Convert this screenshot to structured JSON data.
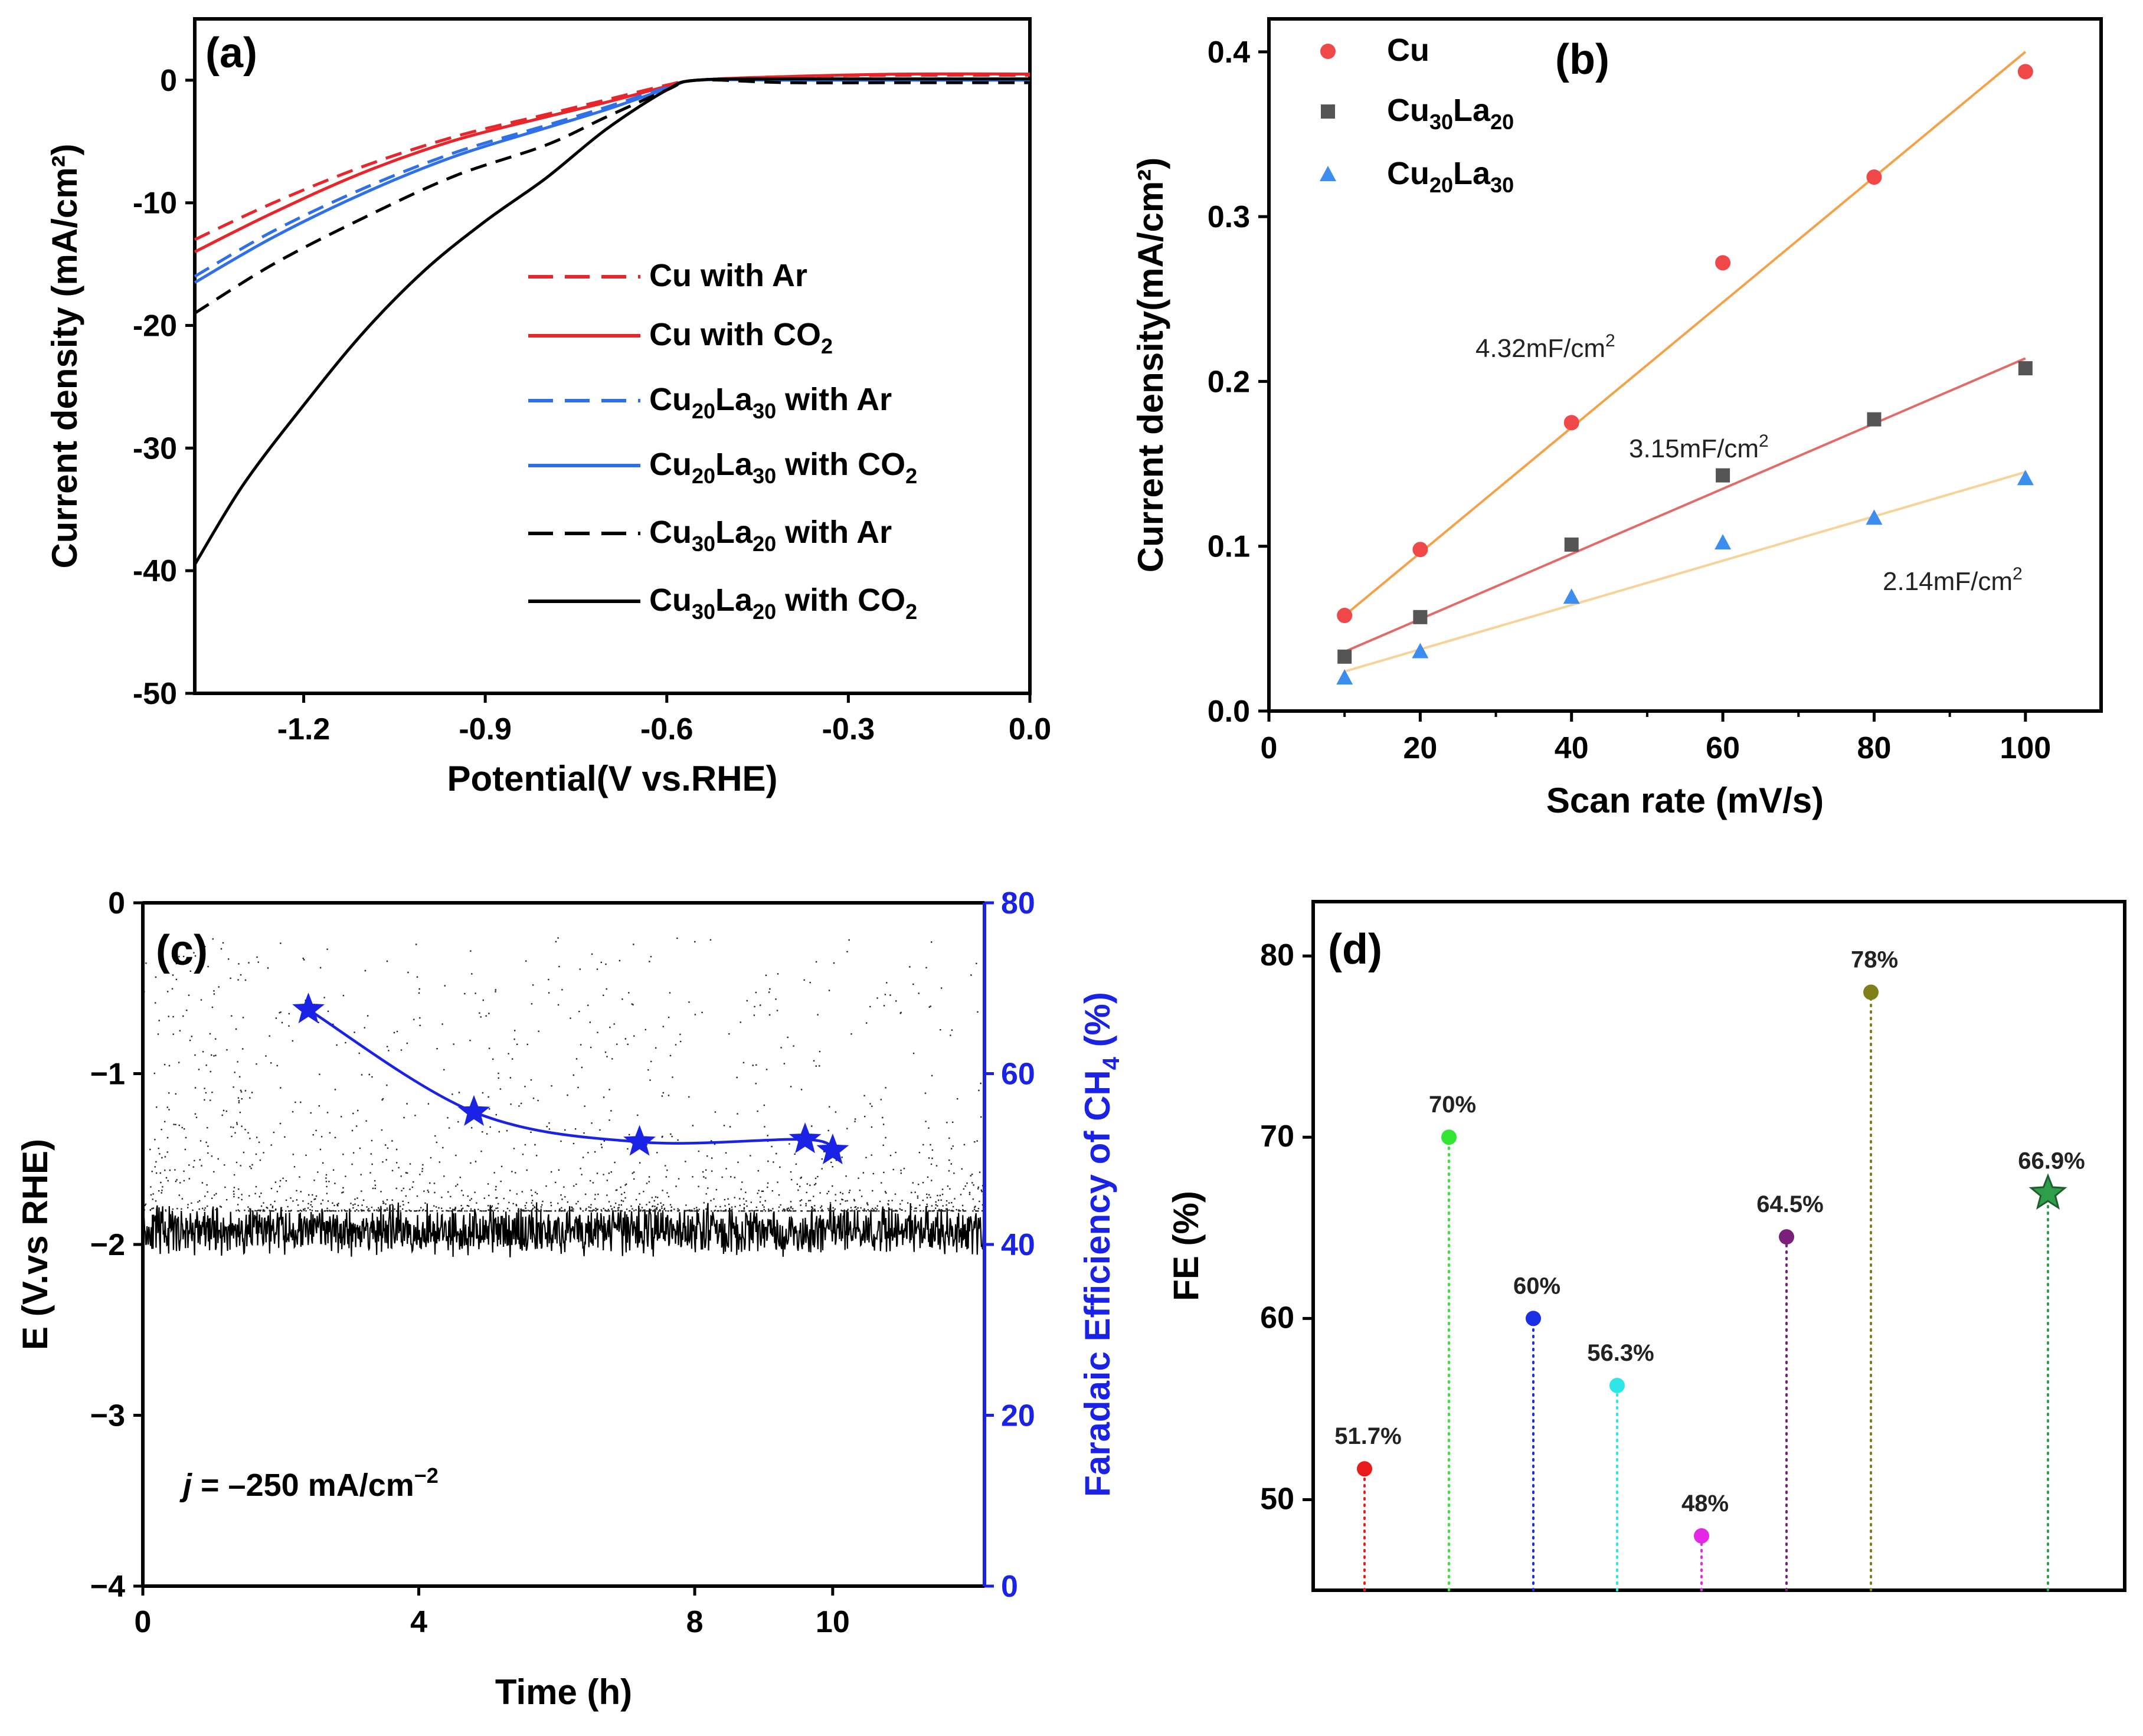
{
  "colors": {
    "red": "#e8252a",
    "blue": "#2f6fe8",
    "black": "#000000",
    "cu": "#f04848",
    "cu30la20": "#555555",
    "cu20la30": "#3b8df0",
    "fitCu": "#f4a24a",
    "fitCu30": "#e06c68",
    "fitCu20": "#f7d39a",
    "faradaic": "#1a22e6"
  },
  "chart_data": [
    {
      "panel": "(a)",
      "type": "line",
      "xlabel": "Potential(V vs.RHE)",
      "ylabel": "Current density (mA/cm²)",
      "xlim": [
        -1.38,
        0.0
      ],
      "ylim": [
        -50,
        5
      ],
      "xticks": [
        {
          "v": -1.2,
          "label": "-1.2"
        },
        {
          "v": -0.9,
          "label": "-0.9"
        },
        {
          "v": -0.6,
          "label": "-0.6"
        },
        {
          "v": -0.3,
          "label": "-0.3"
        },
        {
          "v": 0.0,
          "label": "0.0"
        }
      ],
      "yticks": [
        {
          "v": 0,
          "label": "0"
        },
        {
          "v": -10,
          "label": "-10"
        },
        {
          "v": -20,
          "label": "-20"
        },
        {
          "v": -30,
          "label": "-30"
        },
        {
          "v": -40,
          "label": "-40"
        },
        {
          "v": -50,
          "label": "-50"
        }
      ],
      "legend_position": "center-right",
      "series": [
        {
          "name": "Cu with Ar",
          "legend_main": "Cu with Ar",
          "legend_sub": "",
          "legend_tail": "",
          "color": "#e8252a",
          "dash": true,
          "x": [
            -1.38,
            -1.25,
            -1.1,
            -0.95,
            -0.8,
            -0.7,
            -0.6,
            -0.55,
            -0.4,
            -0.2,
            0.0
          ],
          "y": [
            -13.0,
            -10.0,
            -7.0,
            -4.6,
            -2.8,
            -1.6,
            -0.4,
            0.0,
            0.3,
            0.4,
            0.4
          ]
        },
        {
          "name": "Cu with CO₂",
          "legend_main": "Cu with CO",
          "legend_sub": "2",
          "legend_tail": "",
          "color": "#e8252a",
          "dash": false,
          "x": [
            -1.38,
            -1.25,
            -1.1,
            -0.95,
            -0.8,
            -0.7,
            -0.6,
            -0.55,
            -0.4,
            -0.2,
            0.0
          ],
          "y": [
            -14.0,
            -10.8,
            -7.5,
            -4.9,
            -3.0,
            -1.8,
            -0.5,
            0.0,
            0.3,
            0.5,
            0.5
          ]
        },
        {
          "name": "Cu₂₀La₃₀ with Ar",
          "legend_main": "Cu",
          "legend_sub": "20",
          "legend_main2": "La",
          "legend_sub2": "30",
          "legend_tail": " with Ar",
          "color": "#2f6fe8",
          "dash": true,
          "x": [
            -1.38,
            -1.25,
            -1.1,
            -0.95,
            -0.8,
            -0.7,
            -0.6,
            -0.55,
            -0.4,
            -0.2,
            0.0
          ],
          "y": [
            -16.0,
            -12.3,
            -8.8,
            -5.9,
            -3.7,
            -2.2,
            -0.6,
            0.0,
            0.1,
            0.1,
            0.1
          ]
        },
        {
          "name": "Cu₂₀La₃₀ with CO₂",
          "legend_main": "Cu",
          "legend_sub": "20",
          "legend_main2": "La",
          "legend_sub2": "30",
          "legend_tail": " with CO",
          "legend_sub3": "2",
          "color": "#2f6fe8",
          "dash": false,
          "x": [
            -1.38,
            -1.25,
            -1.1,
            -0.95,
            -0.8,
            -0.7,
            -0.6,
            -0.55,
            -0.4,
            -0.2,
            0.0
          ],
          "y": [
            -16.5,
            -12.8,
            -9.2,
            -6.2,
            -3.9,
            -2.4,
            -0.7,
            0.0,
            0.0,
            0.0,
            0.0
          ]
        },
        {
          "name": "Cu₃₀La₂₀ with Ar",
          "legend_main": "Cu",
          "legend_sub": "30",
          "legend_main2": "La",
          "legend_sub2": "20",
          "legend_tail": " with Ar",
          "color": "#000000",
          "dash": true,
          "x": [
            -1.38,
            -1.25,
            -1.1,
            -0.95,
            -0.8,
            -0.7,
            -0.6,
            -0.55,
            -0.4,
            -0.2,
            0.0
          ],
          "y": [
            -19.0,
            -15.0,
            -11.2,
            -7.8,
            -5.3,
            -3.0,
            -0.8,
            0.0,
            -0.2,
            -0.2,
            -0.2
          ]
        },
        {
          "name": "Cu₃₀La₂₀ with CO₂",
          "legend_main": "Cu",
          "legend_sub": "30",
          "legend_main2": "La",
          "legend_sub2": "20",
          "legend_tail": " with CO",
          "legend_sub3": "2",
          "color": "#000000",
          "dash": false,
          "x": [
            -1.38,
            -1.3,
            -1.2,
            -1.1,
            -1.0,
            -0.9,
            -0.8,
            -0.7,
            -0.6,
            -0.55,
            -0.4,
            -0.2,
            0.0
          ],
          "y": [
            -39.5,
            -33.0,
            -26.5,
            -20.5,
            -15.5,
            -11.5,
            -8.0,
            -4.0,
            -0.8,
            0.0,
            0.1,
            0.1,
            0.1
          ]
        }
      ]
    },
    {
      "panel": "(b)",
      "type": "scatter",
      "xlabel": "Scan rate (mV/s)",
      "ylabel": "Current density(mA/cm²)",
      "xlim": [
        0,
        110
      ],
      "ylim": [
        0.0,
        0.42
      ],
      "xticks": [
        {
          "v": 0,
          "label": "0"
        },
        {
          "v": 20,
          "label": "20"
        },
        {
          "v": 40,
          "label": "40"
        },
        {
          "v": 60,
          "label": "60"
        },
        {
          "v": 80,
          "label": "80"
        },
        {
          "v": 100,
          "label": "100"
        }
      ],
      "yticks": [
        {
          "v": 0.0,
          "label": "0.0"
        },
        {
          "v": 0.1,
          "label": "0.1"
        },
        {
          "v": 0.2,
          "label": "0.2"
        },
        {
          "v": 0.3,
          "label": "0.3"
        },
        {
          "v": 0.4,
          "label": "0.4"
        }
      ],
      "legend_position": "top-left",
      "series": [
        {
          "name": "Cu",
          "legend_main": "Cu",
          "legend_sub": "",
          "legend_main2": "",
          "legend_sub2": "",
          "marker": "circle",
          "color": "#f04848",
          "fit_color": "#f4a24a",
          "x": [
            10,
            20,
            40,
            60,
            80,
            100
          ],
          "y": [
            0.058,
            0.098,
            0.175,
            0.272,
            0.324,
            0.388
          ],
          "fit": [
            [
              10,
              0.058
            ],
            [
              100,
              0.4
            ]
          ],
          "annotation": "4.32mF/cm",
          "annotation_sup": "2"
        },
        {
          "name": "Cu₃₀La₂₀",
          "legend_main": "Cu",
          "legend_sub": "30",
          "legend_main2": "La",
          "legend_sub2": "20",
          "marker": "square",
          "color": "#555555",
          "fit_color": "#e06c68",
          "x": [
            10,
            20,
            40,
            60,
            80,
            100
          ],
          "y": [
            0.033,
            0.057,
            0.101,
            0.143,
            0.177,
            0.208
          ],
          "fit": [
            [
              10,
              0.036
            ],
            [
              100,
              0.214
            ]
          ],
          "annotation": "3.15mF/cm",
          "annotation_sup": "2"
        },
        {
          "name": "Cu₂₀La₃₀",
          "legend_main": "Cu",
          "legend_sub": "20",
          "legend_main2": "La",
          "legend_sub2": "30",
          "marker": "triangle",
          "color": "#3b8df0",
          "fit_color": "#f7d39a",
          "x": [
            10,
            20,
            40,
            60,
            80,
            100
          ],
          "y": [
            0.02,
            0.036,
            0.069,
            0.102,
            0.117,
            0.141
          ],
          "fit": [
            [
              10,
              0.024
            ],
            [
              100,
              0.145
            ]
          ],
          "annotation": "2.14mF/cm",
          "annotation_sup": "2"
        }
      ]
    },
    {
      "panel": "(c)",
      "type": "line",
      "xlabel": "Time (h)",
      "ylabel": "E (V.vs RHE)",
      "y2label": "Faradaic Efficiency of CH",
      "y2label_sub": "4",
      "y2label_tail": " (%)",
      "xlim": [
        0,
        12.2
      ],
      "ylim": [
        -4,
        0
      ],
      "y2lim": [
        0,
        80
      ],
      "xticks": [
        {
          "v": 0,
          "label": "0"
        },
        {
          "v": 4,
          "label": "4"
        },
        {
          "v": 8,
          "label": "8"
        },
        {
          "v": 10,
          "label": "10"
        }
      ],
      "yticks": [
        {
          "v": 0,
          "label": "0"
        },
        {
          "v": -1,
          "label": "−1"
        },
        {
          "v": -2,
          "label": "−2"
        },
        {
          "v": -3,
          "label": "−3"
        },
        {
          "v": -4,
          "label": "−4"
        }
      ],
      "y2ticks": [
        {
          "v": 0,
          "label": "0"
        },
        {
          "v": 20,
          "label": "20"
        },
        {
          "v": 40,
          "label": "40"
        },
        {
          "v": 60,
          "label": "60"
        },
        {
          "v": 80,
          "label": "80"
        }
      ],
      "potential_baseline_V": -1.92,
      "potential_noise_V": 0.12,
      "scatter_above_range_V": [
        -1.8,
        -0.2
      ],
      "faradaic_efficiency": {
        "name": "Faradaic Efficiency of CH₄",
        "x": [
          2.4,
          4.8,
          7.2,
          9.6,
          10.0
        ],
        "y": [
          67.5,
          55.5,
          52.0,
          52.3,
          51.0
        ]
      },
      "annotation_j": "j",
      "annotation_rest": " = –250 mA/cm",
      "annotation_sup": "−2"
    },
    {
      "panel": "(d)",
      "type": "scatter",
      "xlabel": "",
      "ylabel": "FE (%)",
      "ylim": [
        45,
        83
      ],
      "yticks": [
        {
          "v": 50,
          "label": "50"
        },
        {
          "v": 60,
          "label": "60"
        },
        {
          "v": 70,
          "label": "70"
        },
        {
          "v": 80,
          "label": "80"
        }
      ],
      "points": [
        {
          "value": 51.7,
          "label": "51.7%",
          "color": "#e81c1c",
          "marker": "circle"
        },
        {
          "value": 70.0,
          "label": "70%",
          "color": "#33e633",
          "marker": "circle"
        },
        {
          "value": 60.0,
          "label": "60%",
          "color": "#1a2ee6",
          "marker": "circle"
        },
        {
          "value": 56.3,
          "label": "56.3%",
          "color": "#2ee6e6",
          "marker": "circle"
        },
        {
          "value": 48.0,
          "label": "48%",
          "color": "#e626e6",
          "marker": "circle"
        },
        {
          "value": 64.5,
          "label": "64.5%",
          "color": "#7a1f7a",
          "marker": "circle"
        },
        {
          "value": 78.0,
          "label": "78%",
          "color": "#7f7f1a",
          "marker": "circle"
        },
        {
          "value": 66.9,
          "label": "66.9%",
          "color": "#2e9e4a",
          "marker": "star"
        }
      ]
    }
  ]
}
